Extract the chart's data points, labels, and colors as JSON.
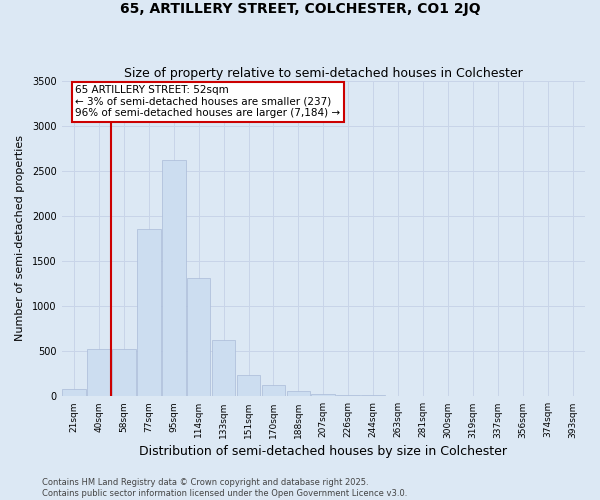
{
  "title": "65, ARTILLERY STREET, COLCHESTER, CO1 2JQ",
  "subtitle": "Size of property relative to semi-detached houses in Colchester",
  "xlabel": "Distribution of semi-detached houses by size in Colchester",
  "ylabel": "Number of semi-detached properties",
  "categories": [
    "21sqm",
    "40sqm",
    "58sqm",
    "77sqm",
    "95sqm",
    "114sqm",
    "133sqm",
    "151sqm",
    "170sqm",
    "188sqm",
    "207sqm",
    "226sqm",
    "244sqm",
    "263sqm",
    "281sqm",
    "300sqm",
    "319sqm",
    "337sqm",
    "356sqm",
    "374sqm",
    "393sqm"
  ],
  "values": [
    80,
    530,
    530,
    1850,
    2620,
    1310,
    630,
    240,
    120,
    60,
    30,
    20,
    12,
    8,
    5,
    4,
    3,
    2,
    2,
    1,
    1
  ],
  "bar_color": "#ccddf0",
  "bar_edge_color": "#aabbd8",
  "red_line_index": 1.5,
  "annotation_text": "65 ARTILLERY STREET: 52sqm\n← 3% of semi-detached houses are smaller (237)\n96% of semi-detached houses are larger (7,184) →",
  "annotation_box_facecolor": "#ffffff",
  "annotation_box_edgecolor": "#cc0000",
  "red_line_color": "#cc0000",
  "grid_color": "#c8d4e8",
  "background_color": "#dce8f4",
  "plot_bg_color": "#dce8f4",
  "ylim": [
    0,
    3500
  ],
  "yticks": [
    0,
    500,
    1000,
    1500,
    2000,
    2500,
    3000,
    3500
  ],
  "footer_line1": "Contains HM Land Registry data © Crown copyright and database right 2025.",
  "footer_line2": "Contains public sector information licensed under the Open Government Licence v3.0.",
  "title_fontsize": 10,
  "subtitle_fontsize": 9,
  "xlabel_fontsize": 9,
  "ylabel_fontsize": 8,
  "tick_fontsize": 6.5,
  "footer_fontsize": 6,
  "annotation_fontsize": 7.5
}
